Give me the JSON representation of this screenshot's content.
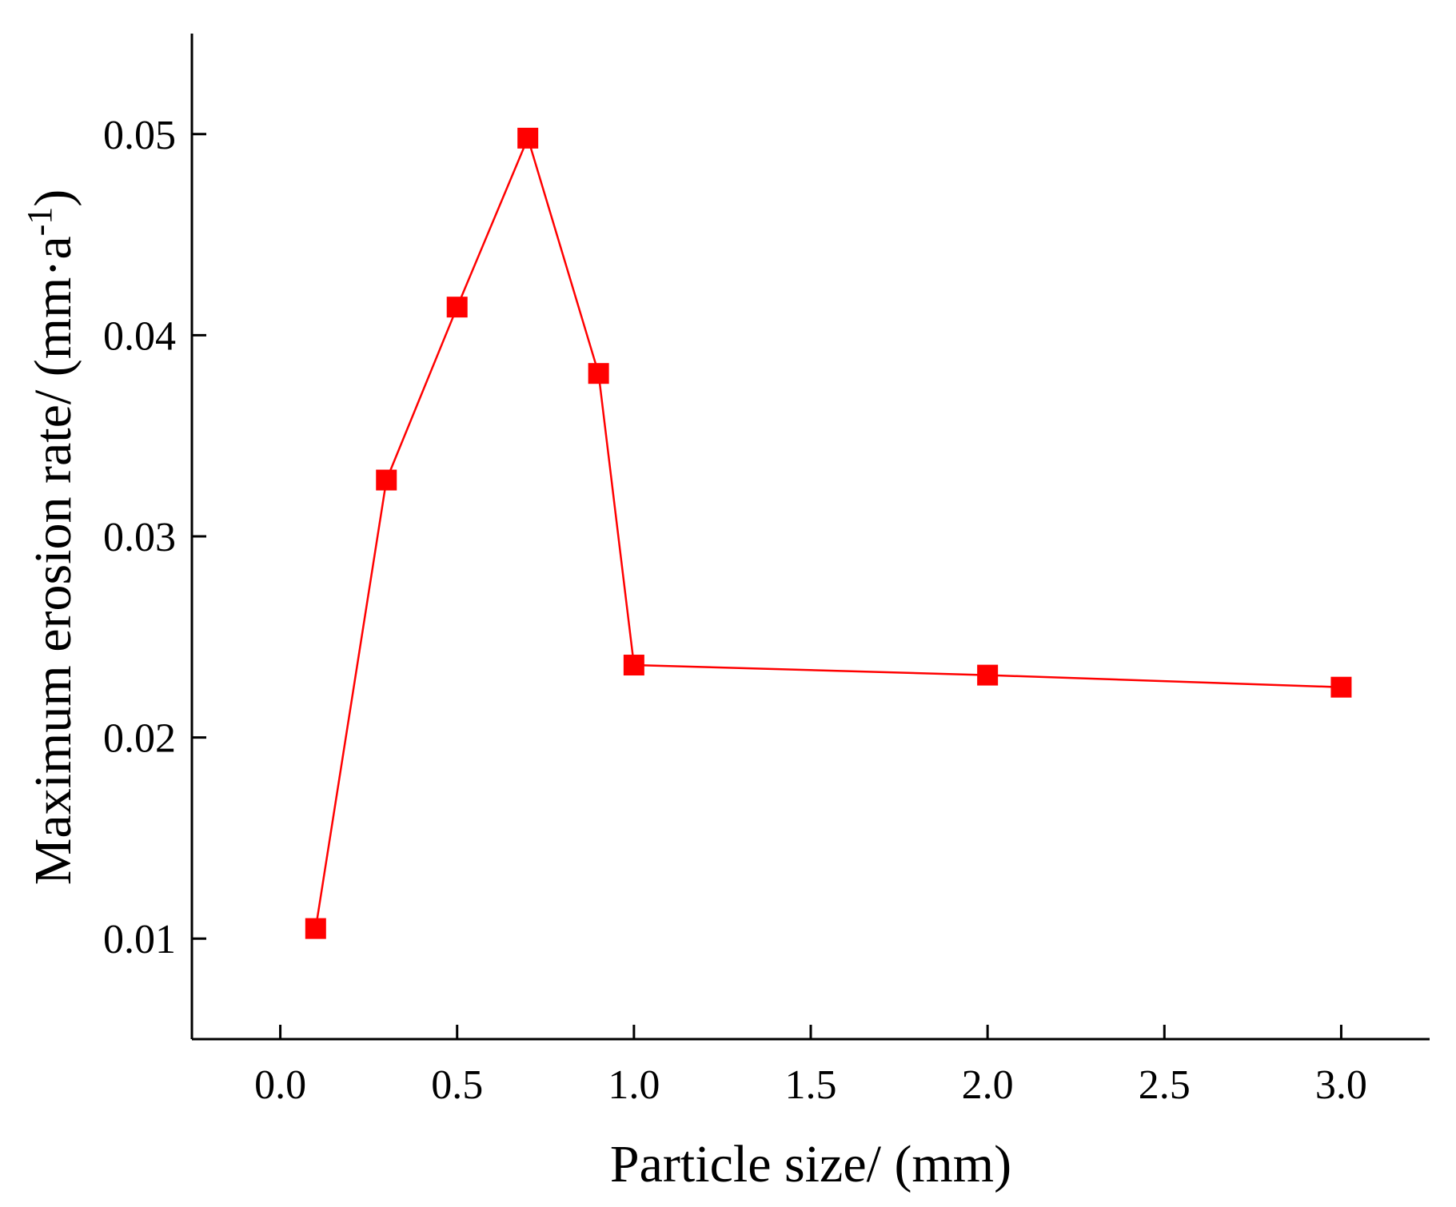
{
  "chart_data": {
    "type": "line",
    "title": "",
    "xlabel": "Particle size/ (mm)",
    "ylabel": {
      "main": "Maximum erosion rate/ (mm·a",
      "superscript": "-1",
      "close": ")"
    },
    "xlim": [
      -0.25,
      3.25
    ],
    "ylim": [
      0.005,
      0.055
    ],
    "xticks": [
      0.0,
      0.5,
      1.0,
      1.5,
      2.0,
      2.5,
      3.0
    ],
    "xtick_labels": [
      "0.0",
      "0.5",
      "1.0",
      "1.5",
      "2.0",
      "2.5",
      "3.0"
    ],
    "yticks": [
      0.01,
      0.02,
      0.03,
      0.04,
      0.05
    ],
    "ytick_labels": [
      "0.01",
      "0.02",
      "0.03",
      "0.04",
      "0.05"
    ],
    "grid": false,
    "legend": "none",
    "series": [
      {
        "color": "#ff0000",
        "marker": "square",
        "x": [
          0.1,
          0.3,
          0.5,
          0.7,
          0.9,
          1.0,
          2.0,
          3.0
        ],
        "y": [
          0.0105,
          0.0328,
          0.0414,
          0.0498,
          0.0381,
          0.0236,
          0.0231,
          0.0225
        ]
      }
    ]
  }
}
